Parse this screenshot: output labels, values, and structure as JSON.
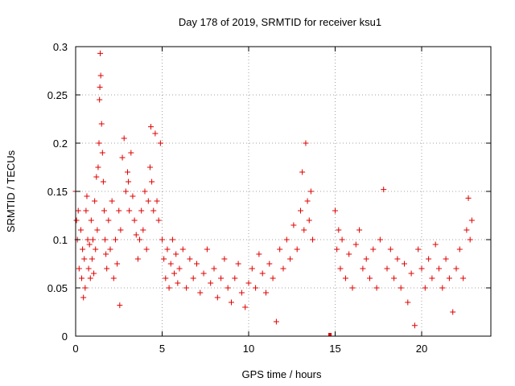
{
  "chart_data": {
    "type": "scatter",
    "title": "Day 178 of 2019, SRMTID for receiver ksu1",
    "xlabel": "GPS time / hours",
    "ylabel": "SRMTID / TECUs",
    "xlim": [
      0,
      24
    ],
    "ylim": [
      0,
      0.3
    ],
    "x_ticks": [
      0,
      5,
      10,
      15,
      20
    ],
    "x_tick_labels": [
      "0",
      "5",
      "10",
      "15",
      "20"
    ],
    "y_ticks": [
      0,
      0.05,
      0.1,
      0.15,
      0.2,
      0.25,
      0.3
    ],
    "y_tick_labels": [
      "0",
      "0.05",
      "0.1",
      "0.15",
      "0.2",
      "0.25",
      "0.3"
    ],
    "grid": true,
    "marker": "+",
    "color": "#e00000",
    "data_gap_hours": [
      13.8,
      14.9
    ],
    "series": [
      {
        "name": "SRMTID",
        "points": [
          [
            0.0,
            0.15
          ],
          [
            0.05,
            0.12
          ],
          [
            0.1,
            0.1
          ],
          [
            0.15,
            0.13
          ],
          [
            0.2,
            0.07
          ],
          [
            0.3,
            0.11
          ],
          [
            0.35,
            0.06
          ],
          [
            0.4,
            0.09
          ],
          [
            0.45,
            0.04
          ],
          [
            0.5,
            0.08
          ],
          [
            0.55,
            0.05
          ],
          [
            0.6,
            0.13
          ],
          [
            0.65,
            0.145
          ],
          [
            0.7,
            0.1
          ],
          [
            0.75,
            0.07
          ],
          [
            0.8,
            0.095
          ],
          [
            0.85,
            0.06
          ],
          [
            0.9,
            0.12
          ],
          [
            0.95,
            0.08
          ],
          [
            1.0,
            0.1
          ],
          [
            1.05,
            0.065
          ],
          [
            1.1,
            0.14
          ],
          [
            1.15,
            0.09
          ],
          [
            1.2,
            0.165
          ],
          [
            1.25,
            0.11
          ],
          [
            1.3,
            0.175
          ],
          [
            1.35,
            0.2
          ],
          [
            1.38,
            0.245
          ],
          [
            1.4,
            0.258
          ],
          [
            1.42,
            0.293
          ],
          [
            1.45,
            0.27
          ],
          [
            1.5,
            0.22
          ],
          [
            1.55,
            0.19
          ],
          [
            1.6,
            0.16
          ],
          [
            1.65,
            0.13
          ],
          [
            1.7,
            0.1
          ],
          [
            1.75,
            0.085
          ],
          [
            1.8,
            0.07
          ],
          [
            1.9,
            0.12
          ],
          [
            2.0,
            0.09
          ],
          [
            2.1,
            0.14
          ],
          [
            2.2,
            0.06
          ],
          [
            2.3,
            0.1
          ],
          [
            2.4,
            0.075
          ],
          [
            2.5,
            0.13
          ],
          [
            2.55,
            0.032
          ],
          [
            2.6,
            0.11
          ],
          [
            2.7,
            0.185
          ],
          [
            2.8,
            0.205
          ],
          [
            2.9,
            0.15
          ],
          [
            3.0,
            0.17
          ],
          [
            3.05,
            0.16
          ],
          [
            3.1,
            0.13
          ],
          [
            3.2,
            0.19
          ],
          [
            3.3,
            0.145
          ],
          [
            3.4,
            0.12
          ],
          [
            3.5,
            0.105
          ],
          [
            3.6,
            0.08
          ],
          [
            3.7,
            0.1
          ],
          [
            3.8,
            0.13
          ],
          [
            3.9,
            0.11
          ],
          [
            4.0,
            0.15
          ],
          [
            4.1,
            0.09
          ],
          [
            4.2,
            0.14
          ],
          [
            4.3,
            0.175
          ],
          [
            4.35,
            0.217
          ],
          [
            4.4,
            0.16
          ],
          [
            4.5,
            0.13
          ],
          [
            4.6,
            0.21
          ],
          [
            4.7,
            0.14
          ],
          [
            4.8,
            0.12
          ],
          [
            4.9,
            0.2
          ],
          [
            5.0,
            0.1
          ],
          [
            5.1,
            0.08
          ],
          [
            5.2,
            0.06
          ],
          [
            5.3,
            0.09
          ],
          [
            5.4,
            0.05
          ],
          [
            5.5,
            0.075
          ],
          [
            5.6,
            0.1
          ],
          [
            5.7,
            0.065
          ],
          [
            5.8,
            0.085
          ],
          [
            5.9,
            0.055
          ],
          [
            6.0,
            0.07
          ],
          [
            6.2,
            0.09
          ],
          [
            6.4,
            0.05
          ],
          [
            6.6,
            0.08
          ],
          [
            6.8,
            0.06
          ],
          [
            7.0,
            0.075
          ],
          [
            7.2,
            0.045
          ],
          [
            7.4,
            0.065
          ],
          [
            7.6,
            0.09
          ],
          [
            7.8,
            0.055
          ],
          [
            8.0,
            0.07
          ],
          [
            8.2,
            0.04
          ],
          [
            8.4,
            0.06
          ],
          [
            8.6,
            0.08
          ],
          [
            8.8,
            0.05
          ],
          [
            9.0,
            0.035
          ],
          [
            9.2,
            0.06
          ],
          [
            9.4,
            0.075
          ],
          [
            9.6,
            0.045
          ],
          [
            9.8,
            0.03
          ],
          [
            10.0,
            0.055
          ],
          [
            10.2,
            0.07
          ],
          [
            10.4,
            0.05
          ],
          [
            10.6,
            0.085
          ],
          [
            10.8,
            0.065
          ],
          [
            11.0,
            0.045
          ],
          [
            11.2,
            0.075
          ],
          [
            11.4,
            0.06
          ],
          [
            11.6,
            0.015
          ],
          [
            11.8,
            0.09
          ],
          [
            12.0,
            0.07
          ],
          [
            12.2,
            0.1
          ],
          [
            12.4,
            0.08
          ],
          [
            12.6,
            0.115
          ],
          [
            12.8,
            0.09
          ],
          [
            13.0,
            0.13
          ],
          [
            13.1,
            0.17
          ],
          [
            13.2,
            0.11
          ],
          [
            13.3,
            0.2
          ],
          [
            13.4,
            0.14
          ],
          [
            13.5,
            0.12
          ],
          [
            13.6,
            0.15
          ],
          [
            13.7,
            0.1
          ],
          [
            15.0,
            0.13
          ],
          [
            15.1,
            0.09
          ],
          [
            15.2,
            0.11
          ],
          [
            15.3,
            0.07
          ],
          [
            15.4,
            0.1
          ],
          [
            15.6,
            0.06
          ],
          [
            15.8,
            0.085
          ],
          [
            16.0,
            0.05
          ],
          [
            16.2,
            0.095
          ],
          [
            16.4,
            0.11
          ],
          [
            16.6,
            0.07
          ],
          [
            16.8,
            0.08
          ],
          [
            17.0,
            0.06
          ],
          [
            17.2,
            0.09
          ],
          [
            17.4,
            0.05
          ],
          [
            17.6,
            0.1
          ],
          [
            17.8,
            0.152
          ],
          [
            18.0,
            0.07
          ],
          [
            18.2,
            0.09
          ],
          [
            18.4,
            0.06
          ],
          [
            18.6,
            0.08
          ],
          [
            18.8,
            0.05
          ],
          [
            19.0,
            0.075
          ],
          [
            19.2,
            0.035
          ],
          [
            19.4,
            0.065
          ],
          [
            19.6,
            0.011
          ],
          [
            19.8,
            0.09
          ],
          [
            20.0,
            0.07
          ],
          [
            20.2,
            0.05
          ],
          [
            20.4,
            0.08
          ],
          [
            20.6,
            0.06
          ],
          [
            20.8,
            0.095
          ],
          [
            21.0,
            0.07
          ],
          [
            21.2,
            0.05
          ],
          [
            21.4,
            0.08
          ],
          [
            21.6,
            0.06
          ],
          [
            21.8,
            0.025
          ],
          [
            22.0,
            0.07
          ],
          [
            22.2,
            0.09
          ],
          [
            22.4,
            0.06
          ],
          [
            22.6,
            0.11
          ],
          [
            22.7,
            0.143
          ],
          [
            22.8,
            0.1
          ],
          [
            22.9,
            0.12
          ]
        ]
      }
    ]
  }
}
